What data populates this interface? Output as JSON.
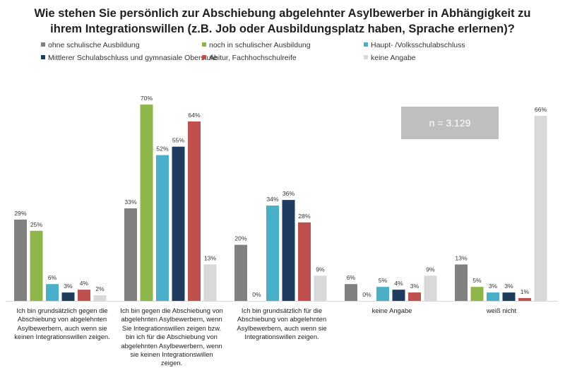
{
  "chart_data": {
    "type": "bar",
    "title": "Wie stehen Sie persönlich zur Abschiebung abgelehnter Asylbewerber in Abhängigkeit zu ihrem Integrationswillen (z.B. Job oder Ausbildungsplatz haben, Sprache erlernen)?",
    "categories": [
      "Ich bin grundsätzlich gegen die Abschiebung von abgelehnten Asylbewerbern, auch wenn sie keinen Integrationswillen zeigen.",
      "Ich bin gegen die Abschiebung von abgelehnten Asylbewerbern, wenn Sie Integrationswillen zeigen bzw. bin ich für die Abschiebung von abgelehnten Asylbewerbern, wenn sie keinen Integrationswillen zeigen.",
      "Ich bin grundsätzlich für die Abschiebung von abgelehnten Asylbewerbern, auch wenn sie Integrationswillen zeigen.",
      "keine Angabe",
      "weiß nicht"
    ],
    "series": [
      {
        "name": "ohne schulische Ausbildung",
        "color": "#808080",
        "values": [
          29,
          33,
          20,
          6,
          13
        ]
      },
      {
        "name": "noch in schulischer Ausbildung",
        "color": "#8fb64a",
        "values": [
          25,
          70,
          0,
          0,
          5
        ]
      },
      {
        "name": "Haupt- /Volksschulabschluss",
        "color": "#4aafc9",
        "values": [
          6,
          52,
          34,
          5,
          3
        ]
      },
      {
        "name": "Mittlerer Schulabschluss und gymnasiale Oberstufe",
        "color": "#1f3b60",
        "values": [
          3,
          55,
          36,
          4,
          3
        ]
      },
      {
        "name": "Abitur, Fachhochschulreife",
        "color": "#c0504d",
        "values": [
          4,
          64,
          28,
          3,
          1
        ]
      },
      {
        "name": "keine Angabe",
        "color": "#d9d9d9",
        "values": [
          2,
          13,
          9,
          9,
          66
        ]
      }
    ],
    "value_suffix": "%",
    "ylim": [
      0,
      70
    ],
    "grid": false,
    "legend_placement": "top",
    "annotation": "n = 3.129"
  }
}
